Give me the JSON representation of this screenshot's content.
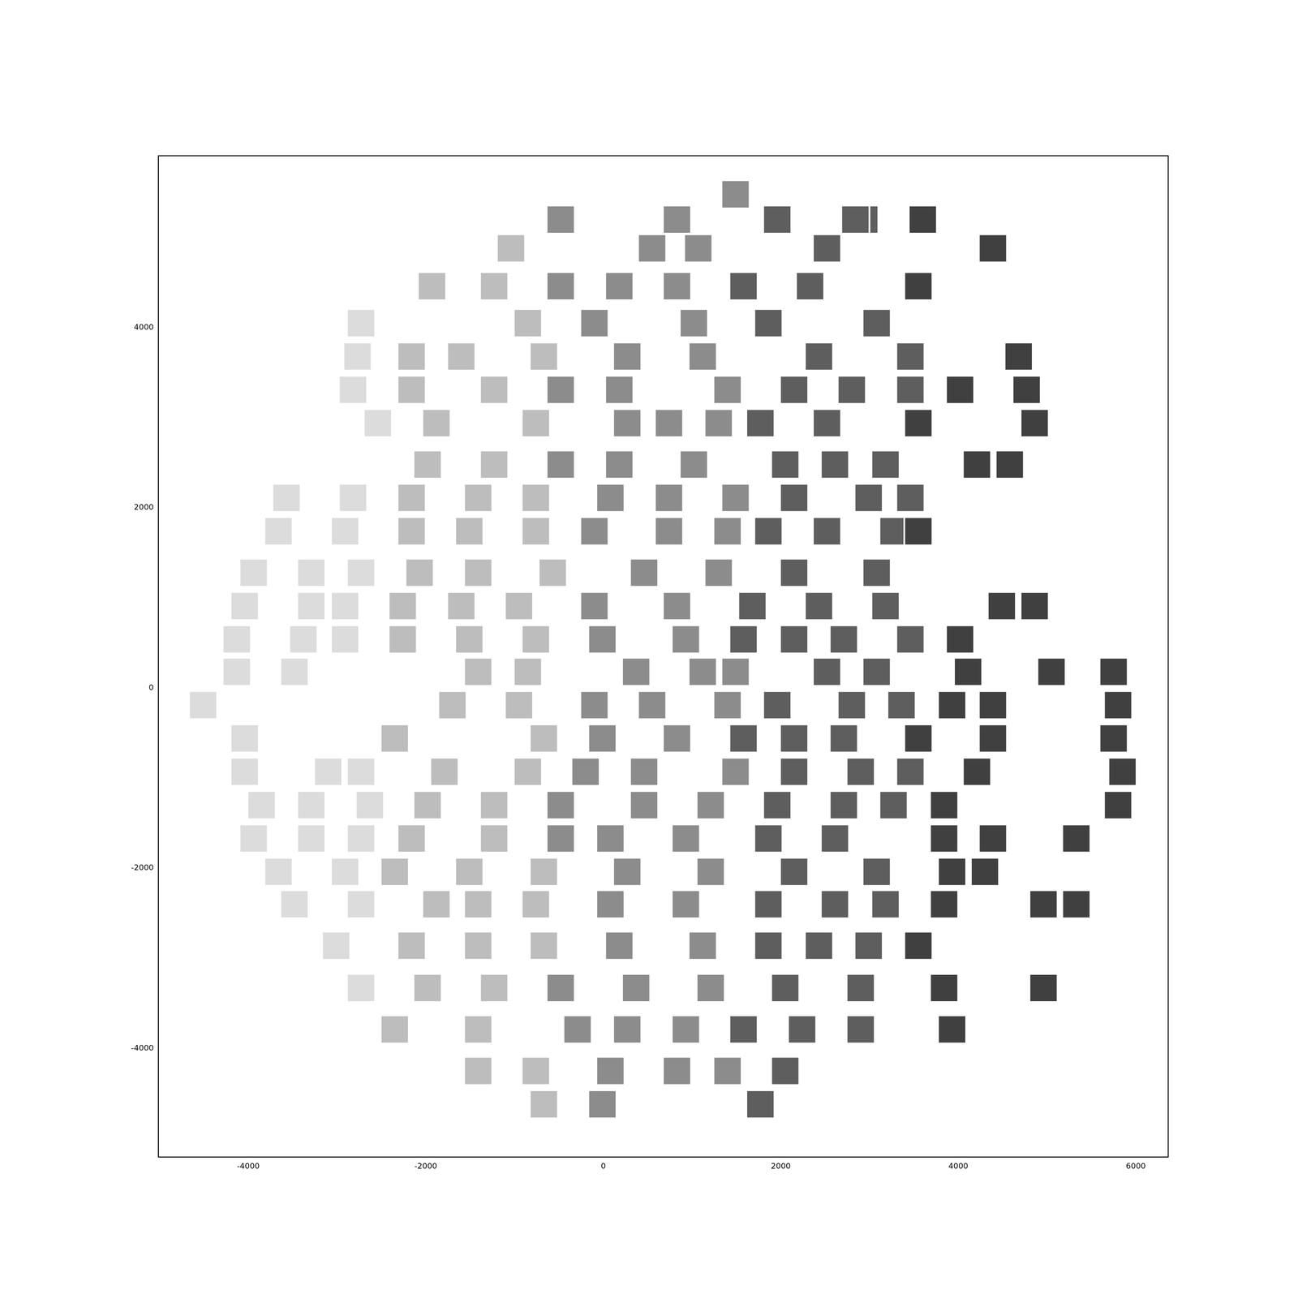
{
  "chart_data": {
    "type": "scatter",
    "marker": "square",
    "grid": false,
    "xlim": [
      -5012,
      6365
    ],
    "ylim": [
      -5207,
      5908
    ],
    "xticks": [
      -4000,
      -2000,
      0,
      2000,
      4000,
      6000
    ],
    "yticks": [
      -4000,
      -2000,
      0,
      2000,
      4000
    ],
    "x": [
      1490,
      1960,
      3600,
      2940,
      -480,
      830,
      2840,
      -1040,
      550,
      1070,
      2520,
      4390,
      -1930,
      -1230,
      -480,
      180,
      830,
      1580,
      2330,
      3550,
      -2730,
      -850,
      -100,
      1020,
      1860,
      3080,
      -2770,
      -2160,
      -1600,
      -670,
      270,
      1120,
      2430,
      3460,
      4680,
      -2820,
      -2160,
      -1230,
      -480,
      180,
      1400,
      2150,
      2800,
      3460,
      4020,
      4770,
      -2540,
      -1880,
      -760,
      270,
      740,
      1300,
      1770,
      2520,
      3550,
      4860,
      -1980,
      -1230,
      -480,
      180,
      1020,
      2050,
      2610,
      3180,
      4210,
      4580,
      -3570,
      -2820,
      -2160,
      -1410,
      -760,
      80,
      740,
      1490,
      2150,
      2990,
      3460,
      -3660,
      -2910,
      -2160,
      -1510,
      -760,
      -100,
      740,
      1400,
      1860,
      2520,
      3270,
      3550,
      -3940,
      -3290,
      -2730,
      -2070,
      -1410,
      -570,
      460,
      1300,
      2150,
      3080,
      -4040,
      -3290,
      -2910,
      -2260,
      -1600,
      -950,
      -100,
      830,
      1680,
      2430,
      3180,
      4490,
      4860,
      -4130,
      -3380,
      -2910,
      -2260,
      -1510,
      -760,
      -10,
      930,
      1580,
      2150,
      2710,
      3460,
      4020,
      -4130,
      -3480,
      -1410,
      -850,
      370,
      1120,
      1490,
      2520,
      3080,
      4110,
      5050,
      5750,
      -4510,
      -1700,
      -950,
      -100,
      550,
      1400,
      1960,
      2800,
      3360,
      3930,
      4390,
      5800,
      -4040,
      -2350,
      -670,
      -10,
      830,
      1580,
      2150,
      2710,
      3550,
      4390,
      5750,
      -4040,
      -3100,
      -2730,
      -1790,
      -850,
      -200,
      460,
      1490,
      2150,
      2900,
      3460,
      4210,
      5850,
      -3850,
      -3290,
      -2630,
      -1980,
      -1230,
      -480,
      460,
      1210,
      1960,
      2710,
      3270,
      3840,
      5800,
      -3940,
      -3290,
      -2730,
      -2160,
      -1230,
      -480,
      80,
      930,
      1860,
      2610,
      3840,
      4390,
      5330,
      -3660,
      -2910,
      -2350,
      -1510,
      -670,
      270,
      1210,
      2150,
      3080,
      3930,
      4300,
      -3480,
      -2730,
      -1880,
      -1410,
      -760,
      80,
      930,
      1860,
      2610,
      3180,
      3840,
      4960,
      5330,
      -3010,
      -2160,
      -1410,
      -670,
      180,
      1120,
      1860,
      2430,
      2990,
      3550,
      -2730,
      -1980,
      -1230,
      -480,
      370,
      1210,
      2050,
      2900,
      3840,
      4960,
      -2350,
      -1410,
      -290,
      270,
      930,
      1580,
      2240,
      2900,
      3930,
      -1410,
      -760,
      80,
      830,
      1400,
      2050,
      -670,
      -10,
      1770
    ],
    "values": [
      5480,
      5200,
      5200,
      5200,
      5200,
      5200,
      5200,
      4880,
      4880,
      4880,
      4880,
      4880,
      4460,
      4460,
      4460,
      4460,
      4460,
      4460,
      4460,
      4460,
      4050,
      4050,
      4050,
      4050,
      4050,
      4050,
      3680,
      3680,
      3680,
      3680,
      3680,
      3680,
      3680,
      3680,
      3680,
      3310,
      3310,
      3310,
      3310,
      3310,
      3310,
      3310,
      3310,
      3310,
      3310,
      3310,
      2940,
      2940,
      2940,
      2940,
      2940,
      2940,
      2940,
      2940,
      2940,
      2940,
      2480,
      2480,
      2480,
      2480,
      2480,
      2480,
      2480,
      2480,
      2480,
      2480,
      2110,
      2110,
      2110,
      2110,
      2110,
      2110,
      2110,
      2110,
      2110,
      2110,
      2110,
      1740,
      1740,
      1740,
      1740,
      1740,
      1740,
      1740,
      1740,
      1740,
      1740,
      1740,
      1740,
      1280,
      1280,
      1280,
      1280,
      1280,
      1280,
      1280,
      1280,
      1280,
      1280,
      910,
      910,
      910,
      910,
      910,
      910,
      910,
      910,
      910,
      910,
      910,
      910,
      910,
      540,
      540,
      540,
      540,
      540,
      540,
      540,
      540,
      540,
      540,
      540,
      540,
      540,
      180,
      180,
      180,
      180,
      180,
      180,
      180,
      180,
      180,
      180,
      180,
      180,
      -190,
      -190,
      -190,
      -190,
      -190,
      -190,
      -190,
      -190,
      -190,
      -190,
      -190,
      -190,
      -560,
      -560,
      -560,
      -560,
      -560,
      -560,
      -560,
      -560,
      -560,
      -560,
      -560,
      -930,
      -930,
      -930,
      -930,
      -930,
      -930,
      -930,
      -930,
      -930,
      -930,
      -930,
      -930,
      -930,
      -1300,
      -1300,
      -1300,
      -1300,
      -1300,
      -1300,
      -1300,
      -1300,
      -1300,
      -1300,
      -1300,
      -1300,
      -1300,
      -1670,
      -1670,
      -1670,
      -1670,
      -1670,
      -1670,
      -1670,
      -1670,
      -1670,
      -1670,
      -1670,
      -1670,
      -1670,
      -2040,
      -2040,
      -2040,
      -2040,
      -2040,
      -2040,
      -2040,
      -2040,
      -2040,
      -2040,
      -2040,
      -2400,
      -2400,
      -2400,
      -2400,
      -2400,
      -2400,
      -2400,
      -2400,
      -2400,
      -2400,
      -2400,
      -2400,
      -2400,
      -2860,
      -2860,
      -2860,
      -2860,
      -2860,
      -2860,
      -2860,
      -2860,
      -2860,
      -2860,
      -3330,
      -3330,
      -3330,
      -3330,
      -3330,
      -3330,
      -3330,
      -3330,
      -3330,
      -3330,
      -3790,
      -3790,
      -3790,
      -3790,
      -3790,
      -3790,
      -3790,
      -3790,
      -3790,
      -4250,
      -4250,
      -4250,
      -4250,
      -4250,
      -4250,
      -4620,
      -4620,
      -4620
    ],
    "colors": [
      "#8c8c8c",
      "#5e5e5e",
      "#404040",
      "#5e5e5e",
      "#8c8c8c",
      "#8c8c8c",
      "#5e5e5e",
      "#bdbdbd",
      "#8c8c8c",
      "#8c8c8c",
      "#5e5e5e",
      "#404040",
      "#bdbdbd",
      "#bdbdbd",
      "#8c8c8c",
      "#8c8c8c",
      "#8c8c8c",
      "#5e5e5e",
      "#5e5e5e",
      "#404040",
      "#dcdcdc",
      "#bdbdbd",
      "#8c8c8c",
      "#8c8c8c",
      "#5e5e5e",
      "#5e5e5e",
      "#dcdcdc",
      "#bdbdbd",
      "#bdbdbd",
      "#bdbdbd",
      "#8c8c8c",
      "#8c8c8c",
      "#5e5e5e",
      "#5e5e5e",
      "#404040",
      "#dcdcdc",
      "#bdbdbd",
      "#bdbdbd",
      "#8c8c8c",
      "#8c8c8c",
      "#8c8c8c",
      "#5e5e5e",
      "#5e5e5e",
      "#5e5e5e",
      "#404040",
      "#404040",
      "#dcdcdc",
      "#bdbdbd",
      "#bdbdbd",
      "#8c8c8c",
      "#8c8c8c",
      "#8c8c8c",
      "#5e5e5e",
      "#5e5e5e",
      "#404040",
      "#404040",
      "#bdbdbd",
      "#bdbdbd",
      "#8c8c8c",
      "#8c8c8c",
      "#8c8c8c",
      "#5e5e5e",
      "#5e5e5e",
      "#5e5e5e",
      "#404040",
      "#404040",
      "#dcdcdc",
      "#dcdcdc",
      "#bdbdbd",
      "#bdbdbd",
      "#bdbdbd",
      "#8c8c8c",
      "#8c8c8c",
      "#8c8c8c",
      "#5e5e5e",
      "#5e5e5e",
      "#5e5e5e",
      "#dcdcdc",
      "#dcdcdc",
      "#bdbdbd",
      "#bdbdbd",
      "#bdbdbd",
      "#8c8c8c",
      "#8c8c8c",
      "#8c8c8c",
      "#5e5e5e",
      "#5e5e5e",
      "#5e5e5e",
      "#404040",
      "#dcdcdc",
      "#dcdcdc",
      "#dcdcdc",
      "#bdbdbd",
      "#bdbdbd",
      "#bdbdbd",
      "#8c8c8c",
      "#8c8c8c",
      "#5e5e5e",
      "#5e5e5e",
      "#dcdcdc",
      "#dcdcdc",
      "#dcdcdc",
      "#bdbdbd",
      "#bdbdbd",
      "#bdbdbd",
      "#8c8c8c",
      "#8c8c8c",
      "#5e5e5e",
      "#5e5e5e",
      "#5e5e5e",
      "#404040",
      "#404040",
      "#dcdcdc",
      "#dcdcdc",
      "#dcdcdc",
      "#bdbdbd",
      "#bdbdbd",
      "#bdbdbd",
      "#8c8c8c",
      "#8c8c8c",
      "#5e5e5e",
      "#5e5e5e",
      "#5e5e5e",
      "#5e5e5e",
      "#404040",
      "#dcdcdc",
      "#dcdcdc",
      "#bdbdbd",
      "#bdbdbd",
      "#8c8c8c",
      "#8c8c8c",
      "#8c8c8c",
      "#5e5e5e",
      "#5e5e5e",
      "#404040",
      "#404040",
      "#404040",
      "#dcdcdc",
      "#bdbdbd",
      "#bdbdbd",
      "#8c8c8c",
      "#8c8c8c",
      "#8c8c8c",
      "#5e5e5e",
      "#5e5e5e",
      "#5e5e5e",
      "#404040",
      "#404040",
      "#404040",
      "#dcdcdc",
      "#bdbdbd",
      "#bdbdbd",
      "#8c8c8c",
      "#8c8c8c",
      "#5e5e5e",
      "#5e5e5e",
      "#5e5e5e",
      "#404040",
      "#404040",
      "#404040",
      "#dcdcdc",
      "#dcdcdc",
      "#dcdcdc",
      "#bdbdbd",
      "#bdbdbd",
      "#8c8c8c",
      "#8c8c8c",
      "#8c8c8c",
      "#5e5e5e",
      "#5e5e5e",
      "#5e5e5e",
      "#404040",
      "#404040",
      "#dcdcdc",
      "#dcdcdc",
      "#dcdcdc",
      "#bdbdbd",
      "#bdbdbd",
      "#8c8c8c",
      "#8c8c8c",
      "#8c8c8c",
      "#5e5e5e",
      "#5e5e5e",
      "#5e5e5e",
      "#404040",
      "#404040",
      "#dcdcdc",
      "#dcdcdc",
      "#dcdcdc",
      "#bdbdbd",
      "#bdbdbd",
      "#8c8c8c",
      "#8c8c8c",
      "#8c8c8c",
      "#5e5e5e",
      "#5e5e5e",
      "#404040",
      "#404040",
      "#404040",
      "#dcdcdc",
      "#dcdcdc",
      "#bdbdbd",
      "#bdbdbd",
      "#bdbdbd",
      "#8c8c8c",
      "#8c8c8c",
      "#5e5e5e",
      "#5e5e5e",
      "#404040",
      "#404040",
      "#dcdcdc",
      "#dcdcdc",
      "#bdbdbd",
      "#bdbdbd",
      "#bdbdbd",
      "#8c8c8c",
      "#8c8c8c",
      "#5e5e5e",
      "#5e5e5e",
      "#5e5e5e",
      "#404040",
      "#404040",
      "#404040",
      "#dcdcdc",
      "#bdbdbd",
      "#bdbdbd",
      "#bdbdbd",
      "#8c8c8c",
      "#8c8c8c",
      "#5e5e5e",
      "#5e5e5e",
      "#5e5e5e",
      "#404040",
      "#dcdcdc",
      "#bdbdbd",
      "#bdbdbd",
      "#8c8c8c",
      "#8c8c8c",
      "#8c8c8c",
      "#5e5e5e",
      "#5e5e5e",
      "#404040",
      "#404040",
      "#bdbdbd",
      "#bdbdbd",
      "#8c8c8c",
      "#8c8c8c",
      "#8c8c8c",
      "#5e5e5e",
      "#5e5e5e",
      "#5e5e5e",
      "#404040",
      "#bdbdbd",
      "#bdbdbd",
      "#8c8c8c",
      "#8c8c8c",
      "#8c8c8c",
      "#5e5e5e",
      "#bdbdbd",
      "#8c8c8c",
      "#5e5e5e"
    ]
  }
}
